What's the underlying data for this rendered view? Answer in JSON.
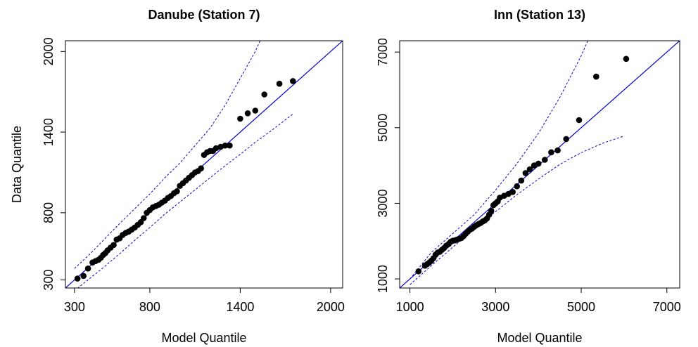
{
  "chart_data": [
    {
      "type": "scatter",
      "title": "Danube (Station 7)",
      "xlabel": "Model Quantile",
      "ylabel": "Data Quantile",
      "xlim": [
        240,
        2080
      ],
      "ylim": [
        240,
        2080
      ],
      "xticks": [
        300,
        800,
        1400,
        2000
      ],
      "yticks": [
        300,
        800,
        1400,
        2000
      ],
      "xtick_labels": [
        "300",
        "800",
        "1400",
        "2000"
      ],
      "ytick_labels": [
        "300",
        "800",
        "1400",
        "2000"
      ],
      "grid": false,
      "reference_line": "y = x",
      "colors": {
        "points": "#000000",
        "reference_line": "#0000cc",
        "confidence_band": "#0000cc"
      },
      "points": {
        "x": [
          320,
          360,
          390,
          420,
          440,
          460,
          475,
          490,
          505,
          520,
          540,
          560,
          580,
          600,
          620,
          640,
          660,
          680,
          700,
          720,
          740,
          760,
          780,
          800,
          820,
          840,
          860,
          880,
          900,
          920,
          940,
          960,
          980,
          1000,
          1020,
          1040,
          1060,
          1080,
          1100,
          1120,
          1140,
          1160,
          1180,
          1200,
          1220,
          1240,
          1270,
          1300,
          1330,
          1400,
          1450,
          1500,
          1560,
          1660,
          1750
        ],
        "y": [
          310,
          330,
          385,
          430,
          440,
          450,
          465,
          485,
          500,
          520,
          540,
          560,
          600,
          610,
          635,
          650,
          660,
          675,
          690,
          710,
          730,
          760,
          800,
          820,
          840,
          850,
          860,
          875,
          890,
          910,
          925,
          945,
          960,
          1000,
          1020,
          1040,
          1060,
          1080,
          1100,
          1110,
          1130,
          1230,
          1250,
          1260,
          1260,
          1280,
          1290,
          1300,
          1300,
          1500,
          1540,
          1560,
          1680,
          1760,
          1780
        ]
      },
      "confidence_band": {
        "x": [
          300,
          400,
          500,
          600,
          700,
          800,
          900,
          1000,
          1100,
          1200,
          1300,
          1400,
          1500,
          1600,
          1750
        ],
        "upper": [
          385,
          490,
          605,
          720,
          830,
          940,
          1060,
          1170,
          1300,
          1430,
          1600,
          1800,
          2000,
          2250,
          2600
        ],
        "lower": [
          220,
          310,
          400,
          495,
          595,
          690,
          790,
          880,
          970,
          1060,
          1150,
          1235,
          1325,
          1405,
          1535
        ]
      }
    },
    {
      "type": "scatter",
      "title": "Inn (Station 13)",
      "xlabel": "Model Quantile",
      "ylabel": "",
      "xlim": [
        760,
        7300
      ],
      "ylim": [
        760,
        7300
      ],
      "xticks": [
        1000,
        3000,
        5000,
        7000
      ],
      "yticks": [
        1000,
        3000,
        5000,
        7000
      ],
      "xtick_labels": [
        "1000",
        "3000",
        "5000",
        "7000"
      ],
      "ytick_labels": [
        "1000",
        "3000",
        "5000",
        "7000"
      ],
      "grid": false,
      "reference_line": "y = x",
      "colors": {
        "points": "#000000",
        "reference_line": "#0000cc",
        "confidence_band": "#0000cc"
      },
      "points": {
        "x": [
          1200,
          1350,
          1400,
          1450,
          1500,
          1550,
          1600,
          1650,
          1700,
          1750,
          1800,
          1850,
          1900,
          1950,
          2000,
          2050,
          2100,
          2150,
          2200,
          2250,
          2300,
          2350,
          2400,
          2450,
          2500,
          2550,
          2600,
          2650,
          2700,
          2750,
          2800,
          2850,
          2900,
          2950,
          3000,
          3050,
          3100,
          3200,
          3300,
          3400,
          3500,
          3600,
          3700,
          3800,
          3900,
          4000,
          4150,
          4300,
          4450,
          4650,
          4950,
          5350,
          6050
        ],
        "y": [
          1200,
          1350,
          1390,
          1430,
          1480,
          1550,
          1640,
          1700,
          1720,
          1770,
          1820,
          1880,
          1920,
          1980,
          2010,
          2020,
          2040,
          2060,
          2080,
          2130,
          2190,
          2250,
          2300,
          2330,
          2380,
          2420,
          2450,
          2480,
          2520,
          2550,
          2600,
          2700,
          2800,
          2950,
          3000,
          3050,
          3150,
          3200,
          3250,
          3300,
          3450,
          3600,
          3800,
          3900,
          4000,
          4050,
          4150,
          4350,
          4400,
          4700,
          5200,
          6350,
          6820
        ]
      },
      "confidence_band": {
        "x": [
          1000,
          1500,
          2000,
          2500,
          3000,
          3500,
          4000,
          4500,
          5000,
          5500,
          6000
        ],
        "upper": [
          1000,
          1700,
          2200,
          2700,
          3350,
          4050,
          4850,
          5800,
          6900,
          8200,
          9700
        ],
        "lower": [
          850,
          1350,
          1840,
          2320,
          2780,
          3230,
          3640,
          4030,
          4340,
          4590,
          4780
        ]
      }
    }
  ]
}
